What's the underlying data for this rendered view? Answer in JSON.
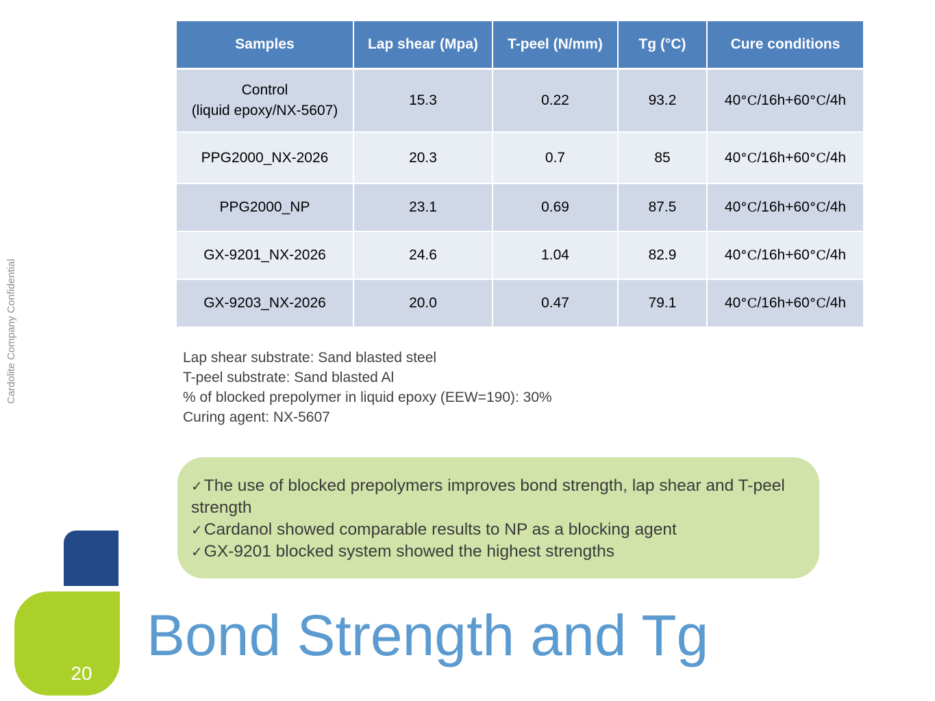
{
  "sidebar": {
    "confidential": "Cardolite Company Confidential"
  },
  "table": {
    "headers": [
      "Samples",
      "Lap shear (Mpa)",
      "T-peel (N/mm)",
      "Tg (°C)",
      "Cure conditions"
    ],
    "rows": [
      {
        "sample_line1": "Control",
        "sample_line2": "(liquid epoxy/NX-5607)",
        "lap_shear": "15.3",
        "t_peel": "0.22",
        "tg": "93.2",
        "cure_a": "40",
        "cure_b": "/16h+60",
        "cure_c": "/4h",
        "deg": "°C"
      },
      {
        "sample_line1": "PPG2000_NX-2026",
        "sample_line2": "",
        "lap_shear": "20.3",
        "t_peel": "0.7",
        "tg": "85",
        "cure_a": "40",
        "cure_b": "/16h+60",
        "cure_c": "/4h",
        "deg": "°C"
      },
      {
        "sample_line1": "PPG2000_NP",
        "sample_line2": "",
        "lap_shear": "23.1",
        "t_peel": "0.69",
        "tg": "87.5",
        "cure_a": "40",
        "cure_b": "/16h+60",
        "cure_c": "/4h",
        "deg": "°C"
      },
      {
        "sample_line1": "GX-9201_NX-2026",
        "sample_line2": "",
        "lap_shear": "24.6",
        "t_peel": "1.04",
        "tg": "82.9",
        "cure_a": "40",
        "cure_b": "/16h+60",
        "cure_c": "/4h",
        "deg": "°C"
      },
      {
        "sample_line1": "GX-9203_NX-2026",
        "sample_line2": "",
        "lap_shear": "20.0",
        "t_peel": "0.47",
        "tg": "79.1",
        "cure_a": "40",
        "cure_b": "/16h+60",
        "cure_c": "/4h",
        "deg": "°C"
      }
    ]
  },
  "notes": [
    "Lap shear substrate: Sand blasted steel",
    "T-peel substrate: Sand blasted Al",
    "% of blocked prepolymer in liquid epoxy (EEW=190): 30%",
    "Curing agent: NX-5607"
  ],
  "callout": {
    "check_icon": "check-icon",
    "bullets": [
      "The use of blocked prepolymers improves bond strength, lap shear and T-peel strength",
      "Cardanol showed comparable results to NP as a blocking agent",
      "GX-9201 blocked system showed the highest strengths"
    ]
  },
  "footer": {
    "page_number": "20",
    "title": "Bond Strength and Tg"
  },
  "colors": {
    "header_blue": "#4f81bd",
    "row_dark": "#d0d8e8",
    "row_light": "#e9edf4",
    "callout_green": "#d1e3a9",
    "square_blue": "#234887",
    "square_green": "#acd02a",
    "title_blue": "#5b9bd0"
  }
}
